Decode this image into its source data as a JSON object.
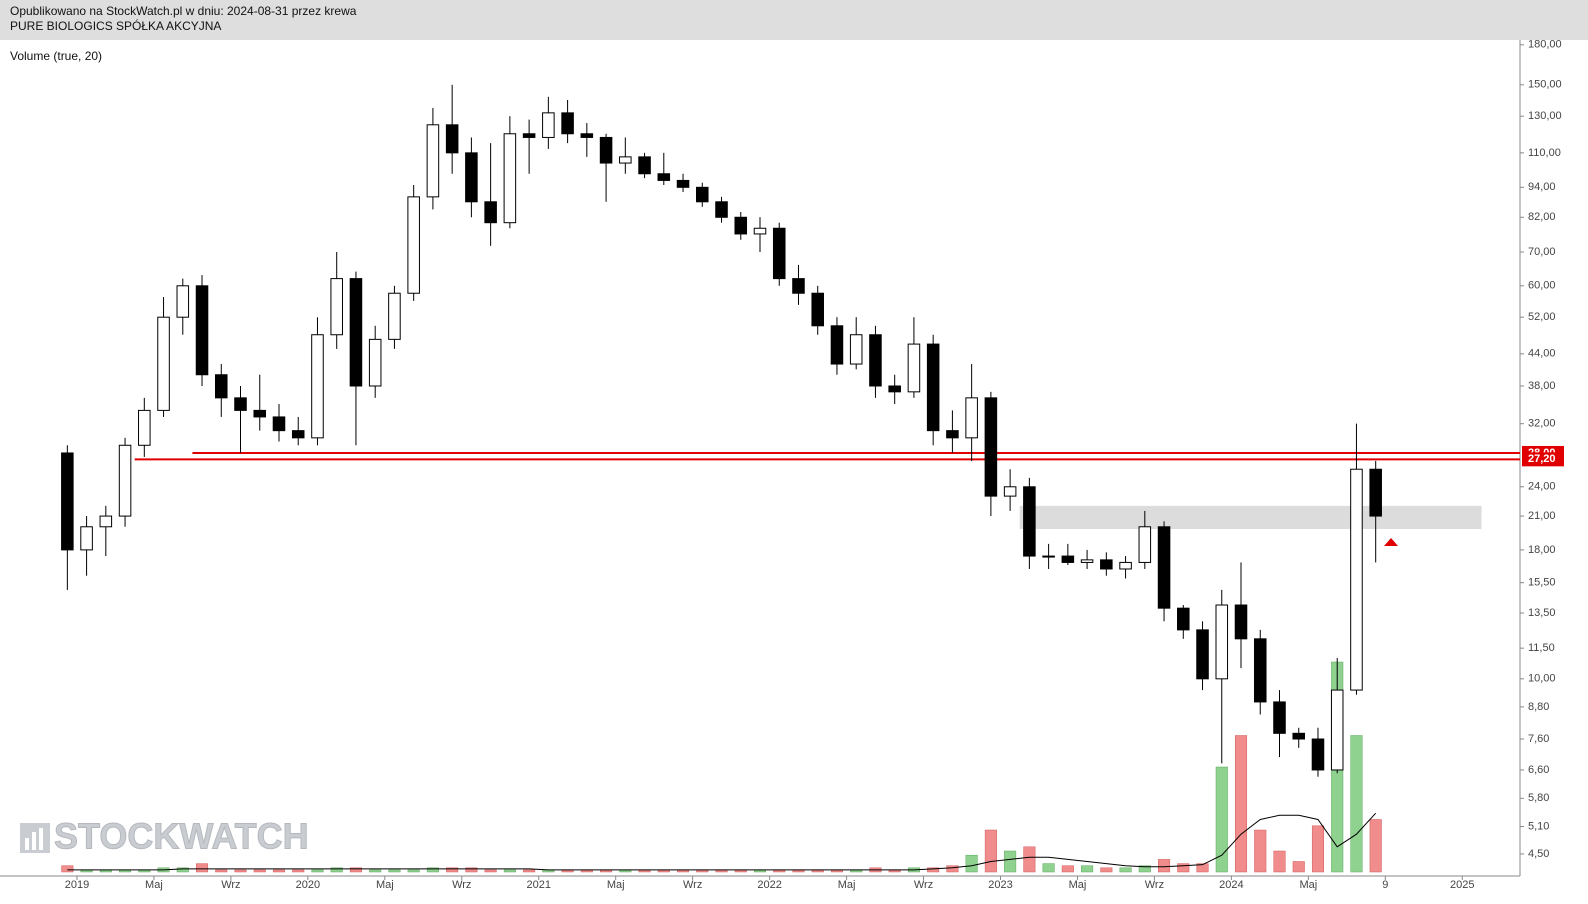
{
  "header": {
    "published": "Opublikowano na StockWatch.pl w dniu: 2024-08-31 przez krewa",
    "company": "PURE BIOLOGICS SPÓŁKA AKCYJNA"
  },
  "watermark": "STOCKWATCH",
  "chart_data": {
    "type": "candlestick",
    "indicator_label": "Volume (true, 20)",
    "log_scale": true,
    "ylim": [
      4.07,
      184
    ],
    "yticks": [
      {
        "value": 180,
        "label": "180,00"
      },
      {
        "value": 150,
        "label": "150,00"
      },
      {
        "value": 130,
        "label": "130,00"
      },
      {
        "value": 110,
        "label": "110,00"
      },
      {
        "value": 94,
        "label": "94,00"
      },
      {
        "value": 82,
        "label": "82,00"
      },
      {
        "value": 70,
        "label": "70,00"
      },
      {
        "value": 60,
        "label": "60,00"
      },
      {
        "value": 52,
        "label": "52,00"
      },
      {
        "value": 44,
        "label": "44,00"
      },
      {
        "value": 38,
        "label": "38,00"
      },
      {
        "value": 32,
        "label": "32,00"
      },
      {
        "value": 24,
        "label": "24,00"
      },
      {
        "value": 21,
        "label": "21,00"
      },
      {
        "value": 18,
        "label": "18,00"
      },
      {
        "value": 15.5,
        "label": "15,50"
      },
      {
        "value": 13.5,
        "label": "13,50"
      },
      {
        "value": 11.5,
        "label": "11,50"
      },
      {
        "value": 10,
        "label": "10,00"
      },
      {
        "value": 8.8,
        "label": "8,80"
      },
      {
        "value": 7.6,
        "label": "7,60"
      },
      {
        "value": 6.6,
        "label": "6,60"
      },
      {
        "value": 5.8,
        "label": "5,80"
      },
      {
        "value": 5.1,
        "label": "5,10"
      },
      {
        "value": 4.5,
        "label": "4,50"
      }
    ],
    "xlim": [
      "2018-09",
      "2025-04"
    ],
    "xticks": [
      {
        "value": "2019-01",
        "label": "2019"
      },
      {
        "value": "2019-05",
        "label": "Maj"
      },
      {
        "value": "2019-09",
        "label": "Wrz"
      },
      {
        "value": "2020-01",
        "label": "2020"
      },
      {
        "value": "2020-05",
        "label": "Maj"
      },
      {
        "value": "2020-09",
        "label": "Wrz"
      },
      {
        "value": "2021-01",
        "label": "2021"
      },
      {
        "value": "2021-05",
        "label": "Maj"
      },
      {
        "value": "2021-09",
        "label": "Wrz"
      },
      {
        "value": "2022-01",
        "label": "2022"
      },
      {
        "value": "2022-05",
        "label": "Maj"
      },
      {
        "value": "2022-09",
        "label": "Wrz"
      },
      {
        "value": "2023-01",
        "label": "2023"
      },
      {
        "value": "2023-05",
        "label": "Maj"
      },
      {
        "value": "2023-09",
        "label": "Wrz"
      },
      {
        "value": "2024-01",
        "label": "2024"
      },
      {
        "value": "2024-05",
        "label": "Maj"
      },
      {
        "value": "2024-09",
        "label": "9"
      },
      {
        "value": "2025-01",
        "label": "2025"
      }
    ],
    "x": [
      "2018-12",
      "2019-01",
      "2019-02",
      "2019-03",
      "2019-04",
      "2019-05",
      "2019-06",
      "2019-07",
      "2019-08",
      "2019-09",
      "2019-10",
      "2019-11",
      "2019-12",
      "2020-01",
      "2020-02",
      "2020-03",
      "2020-04",
      "2020-05",
      "2020-06",
      "2020-07",
      "2020-08",
      "2020-09",
      "2020-10",
      "2020-11",
      "2020-12",
      "2021-01",
      "2021-02",
      "2021-03",
      "2021-04",
      "2021-05",
      "2021-06",
      "2021-07",
      "2021-08",
      "2021-09",
      "2021-10",
      "2021-11",
      "2021-12",
      "2022-01",
      "2022-02",
      "2022-03",
      "2022-04",
      "2022-05",
      "2022-06",
      "2022-07",
      "2022-08",
      "2022-09",
      "2022-10",
      "2022-11",
      "2022-12",
      "2023-01",
      "2023-02",
      "2023-03",
      "2023-04",
      "2023-05",
      "2023-06",
      "2023-07",
      "2023-08",
      "2023-09",
      "2023-10",
      "2023-11",
      "2023-12",
      "2024-01",
      "2024-02",
      "2024-03",
      "2024-04",
      "2024-05",
      "2024-06",
      "2024-07",
      "2024-08"
    ],
    "open": [
      28,
      18,
      20,
      21,
      29,
      34,
      52,
      60,
      40,
      36,
      34,
      33,
      31,
      30,
      48,
      62,
      38,
      47,
      58,
      90,
      125,
      110,
      88,
      80,
      120,
      118,
      132,
      120,
      118,
      105,
      108,
      100,
      97,
      94,
      88,
      82,
      76,
      78,
      62,
      58,
      50,
      42,
      48,
      38,
      37,
      46,
      31,
      30,
      36,
      23,
      24,
      17.5,
      17.5,
      17,
      17.2,
      16.5,
      17,
      20,
      13.8,
      12.5,
      10,
      14,
      12,
      9,
      7.8,
      7.6,
      6.6,
      9.5,
      26
    ],
    "high": [
      29,
      21,
      22,
      30,
      36,
      57,
      62,
      63,
      42,
      38,
      40,
      35,
      33,
      52,
      70,
      64,
      50,
      60,
      95,
      135,
      150,
      118,
      115,
      130,
      128,
      142,
      140,
      126,
      120,
      118,
      110,
      110,
      100,
      96,
      90,
      84,
      82,
      80,
      66,
      60,
      52,
      52,
      50,
      40,
      52,
      48,
      34,
      42,
      37,
      26,
      25,
      18.5,
      18.5,
      18,
      17.8,
      17.5,
      21.5,
      20.5,
      14,
      13,
      15,
      17,
      12.5,
      9.5,
      8,
      8,
      11,
      32,
      27
    ],
    "low": [
      15,
      16,
      17.5,
      20,
      27.5,
      33,
      48,
      38,
      33,
      28,
      31,
      29.5,
      29,
      29,
      45,
      29,
      36,
      45,
      56,
      85,
      100,
      82,
      72,
      78,
      100,
      112,
      115,
      108,
      88,
      100,
      98,
      95,
      92,
      86,
      80,
      74,
      70,
      60,
      55,
      48,
      40,
      41,
      36,
      35,
      36,
      29,
      28,
      27,
      21,
      21.5,
      16.5,
      16.5,
      16.8,
      16.5,
      16,
      15.8,
      16.5,
      13,
      12,
      9.5,
      6.8,
      10.5,
      8.5,
      7,
      7.3,
      6.4,
      6.5,
      9.3,
      17
    ],
    "close": [
      18,
      20,
      21,
      29,
      34,
      52,
      60,
      40,
      36,
      34,
      33,
      31,
      30,
      48,
      62,
      38,
      47,
      58,
      90,
      125,
      110,
      88,
      80,
      120,
      118,
      132,
      120,
      118,
      105,
      108,
      100,
      97,
      94,
      88,
      82,
      76,
      78,
      62,
      58,
      50,
      42,
      48,
      38,
      37,
      46,
      31,
      30,
      36,
      23,
      24,
      17.5,
      17.5,
      17,
      17.2,
      16.5,
      17,
      20,
      13.8,
      12.5,
      10,
      14,
      12,
      9,
      7.8,
      7.6,
      6.6,
      9.5,
      26,
      21
    ],
    "volume": [
      3,
      1,
      1,
      1,
      1,
      2,
      2,
      4,
      1,
      1,
      1,
      1,
      1,
      1,
      2,
      2,
      1,
      1,
      1,
      2,
      2,
      2,
      1,
      1,
      1,
      1,
      1,
      1,
      1,
      1,
      1,
      1,
      1,
      1,
      1,
      1,
      1,
      1,
      1,
      1,
      1,
      1,
      2,
      1,
      2,
      2,
      3,
      8,
      20,
      10,
      12,
      4,
      3,
      3,
      2,
      2,
      3,
      6,
      4,
      4,
      50,
      65,
      20,
      10,
      5,
      22,
      100,
      65,
      25
    ],
    "volume_ma": [
      1,
      1,
      1,
      1,
      1,
      1,
      1.5,
      1.5,
      1.5,
      1.5,
      1.5,
      1.5,
      1.5,
      1.5,
      1.5,
      1.5,
      1.5,
      1.5,
      1.5,
      1.5,
      1.5,
      1.5,
      1.5,
      1.5,
      1.5,
      1,
      1,
      1,
      1,
      1,
      1,
      1,
      1,
      1,
      1,
      1,
      1,
      1,
      1,
      1,
      1,
      1,
      1,
      1,
      1,
      1.5,
      2,
      3,
      5,
      6,
      7,
      7,
      6,
      5,
      4,
      3,
      2.5,
      2.5,
      3,
      3.5,
      8,
      18,
      25,
      27,
      27,
      25,
      12,
      18,
      28
    ],
    "volume_lim": [
      0,
      100
    ],
    "up_color": "#8fd18f",
    "down_color": "#f08c8c",
    "ma_color": "#000000",
    "levels": [
      {
        "value": 28,
        "label": "28,00",
        "from": "2019-07",
        "color": "#e00000"
      },
      {
        "value": 27.2,
        "label": "27,20",
        "from": "2019-04",
        "color": "#e00000"
      }
    ],
    "zone": {
      "low": 19.8,
      "high": 22,
      "from": "2023-02",
      "to": "2025-02",
      "color": "#dcdcdc"
    }
  }
}
